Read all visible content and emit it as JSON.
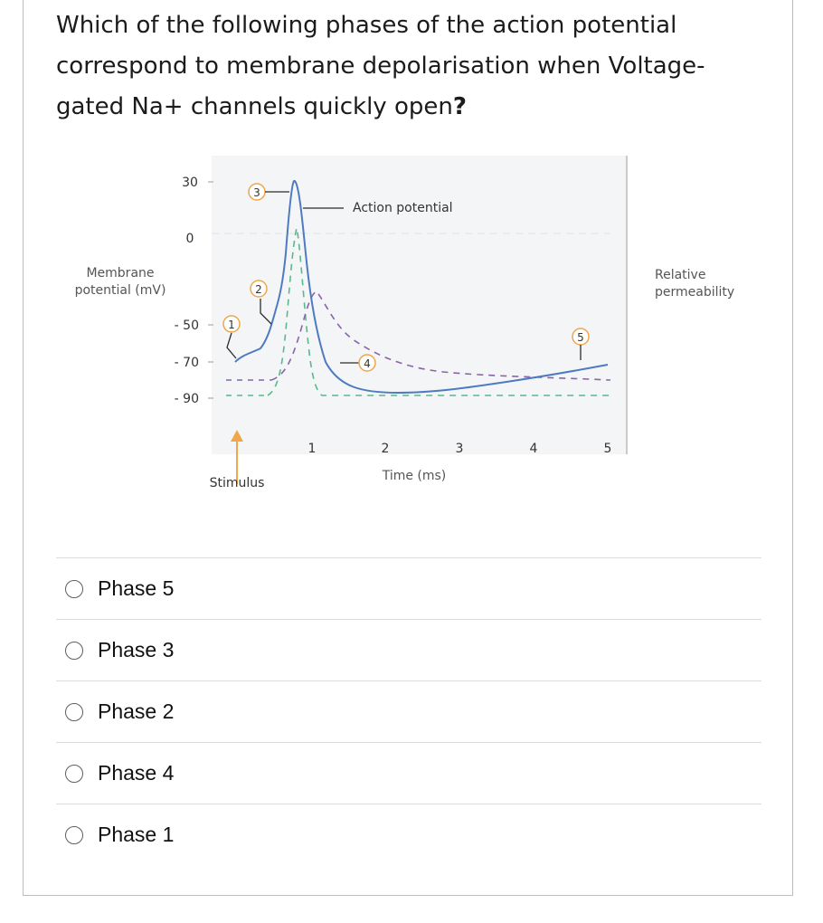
{
  "question": {
    "text": "Which of the following phases of the action potential correspond to membrane depolarisation when Voltage-gated Na+ channels quickly open",
    "mark": "?"
  },
  "figure": {
    "y_axis_label_line1": "Membrane",
    "y_axis_label_line2": "potential (mV)",
    "right_axis_label_line1": "Relative",
    "right_axis_label_line2": "permeability",
    "x_axis_label": "Time (ms)",
    "stimulus_label": "Stimulus",
    "curve_label": "Action potential",
    "y_ticks": [
      "30",
      "0",
      "- 50",
      "- 70",
      "- 90"
    ],
    "x_ticks": [
      "1",
      "2",
      "3",
      "4",
      "5"
    ],
    "phase_markers": [
      "1",
      "2",
      "3",
      "4",
      "5"
    ],
    "colors": {
      "membrane_potential": "#4f7ac1",
      "sodium_permeability": "#58b98a",
      "potassium_permeability": "#8a64a8",
      "stimulus_arrow": "#f0a64a",
      "phase_circle": "#f0a64a"
    }
  },
  "options": [
    {
      "label": "Phase 5"
    },
    {
      "label": "Phase 3"
    },
    {
      "label": "Phase 2"
    },
    {
      "label": "Phase 4"
    },
    {
      "label": "Phase 1"
    }
  ]
}
